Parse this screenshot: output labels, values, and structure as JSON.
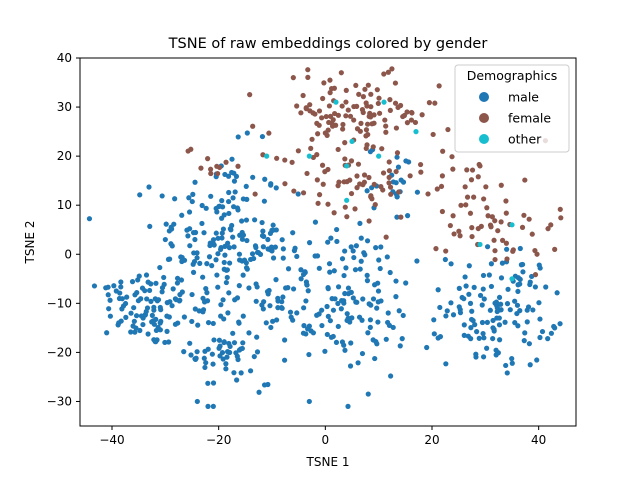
{
  "chart_data": {
    "type": "scatter",
    "title": "TSNE of raw embeddings colored by gender",
    "xlabel": "TSNE 1",
    "ylabel": "TSNE 2",
    "xlim": [
      -46,
      47
    ],
    "ylim": [
      -35,
      40
    ],
    "xticks": [
      -40,
      -20,
      0,
      20,
      40
    ],
    "yticks": [
      -30,
      -20,
      -10,
      0,
      10,
      20,
      30,
      40
    ],
    "grid": false,
    "legend": {
      "title": "Demographics",
      "placement": "top-right"
    },
    "series": [
      {
        "name": "male",
        "color": "#1f77b4",
        "clusters": [
          {
            "center": [
              -33,
              -11
            ],
            "spread": [
              4,
              4
            ],
            "count": 90
          },
          {
            "center": [
              -20,
              3
            ],
            "spread": [
              6,
              9
            ],
            "count": 170
          },
          {
            "center": [
              -19,
              -20
            ],
            "spread": [
              3,
              4
            ],
            "count": 45
          },
          {
            "center": [
              -4,
              -8
            ],
            "spread": [
              9,
              8
            ],
            "count": 150
          },
          {
            "center": [
              8,
              -12
            ],
            "spread": [
              7,
              6
            ],
            "count": 60
          },
          {
            "center": [
              13,
              16
            ],
            "spread": [
              2.5,
              3
            ],
            "count": 20
          },
          {
            "center": [
              33,
              -11
            ],
            "spread": [
              5,
              6
            ],
            "count": 130
          },
          {
            "center": [
              -41,
              -8
            ],
            "spread": [
              1,
              1
            ],
            "count": 6
          }
        ],
        "points": [
          [
            -24,
            -30
          ],
          [
            -22,
            -31
          ],
          [
            -21,
            -31
          ],
          [
            -3,
            -30
          ],
          [
            -41,
            -16
          ],
          [
            43,
            -15
          ],
          [
            -30,
            3
          ],
          [
            19,
            -19
          ]
        ]
      },
      {
        "name": "female",
        "color": "#8c564b",
        "clusters": [
          {
            "center": [
              5,
              28
            ],
            "spread": [
              8,
              4
            ],
            "count": 120
          },
          {
            "center": [
              4,
              14
            ],
            "spread": [
              8,
              4
            ],
            "count": 60
          },
          {
            "center": [
              -22,
              19
            ],
            "spread": [
              2,
              2
            ],
            "count": 10
          },
          {
            "center": [
              33,
              6
            ],
            "spread": [
              5,
              5
            ],
            "count": 45
          },
          {
            "center": [
              27,
              13
            ],
            "spread": [
              4,
              4
            ],
            "count": 20
          }
        ],
        "points": [
          [
            43,
            1
          ],
          [
            29,
            18
          ],
          [
            -6,
            36
          ],
          [
            3,
            37
          ],
          [
            22,
            21
          ]
        ]
      },
      {
        "name": "other",
        "color": "#17becf",
        "points": [
          [
            -11,
            20
          ],
          [
            -3,
            20
          ],
          [
            2,
            31
          ],
          [
            4,
            18
          ],
          [
            5,
            23
          ],
          [
            10,
            20
          ],
          [
            17,
            25
          ],
          [
            35,
            6
          ],
          [
            29,
            2
          ],
          [
            4,
            11
          ],
          [
            35,
            -5
          ],
          [
            11,
            31
          ]
        ]
      }
    ]
  }
}
